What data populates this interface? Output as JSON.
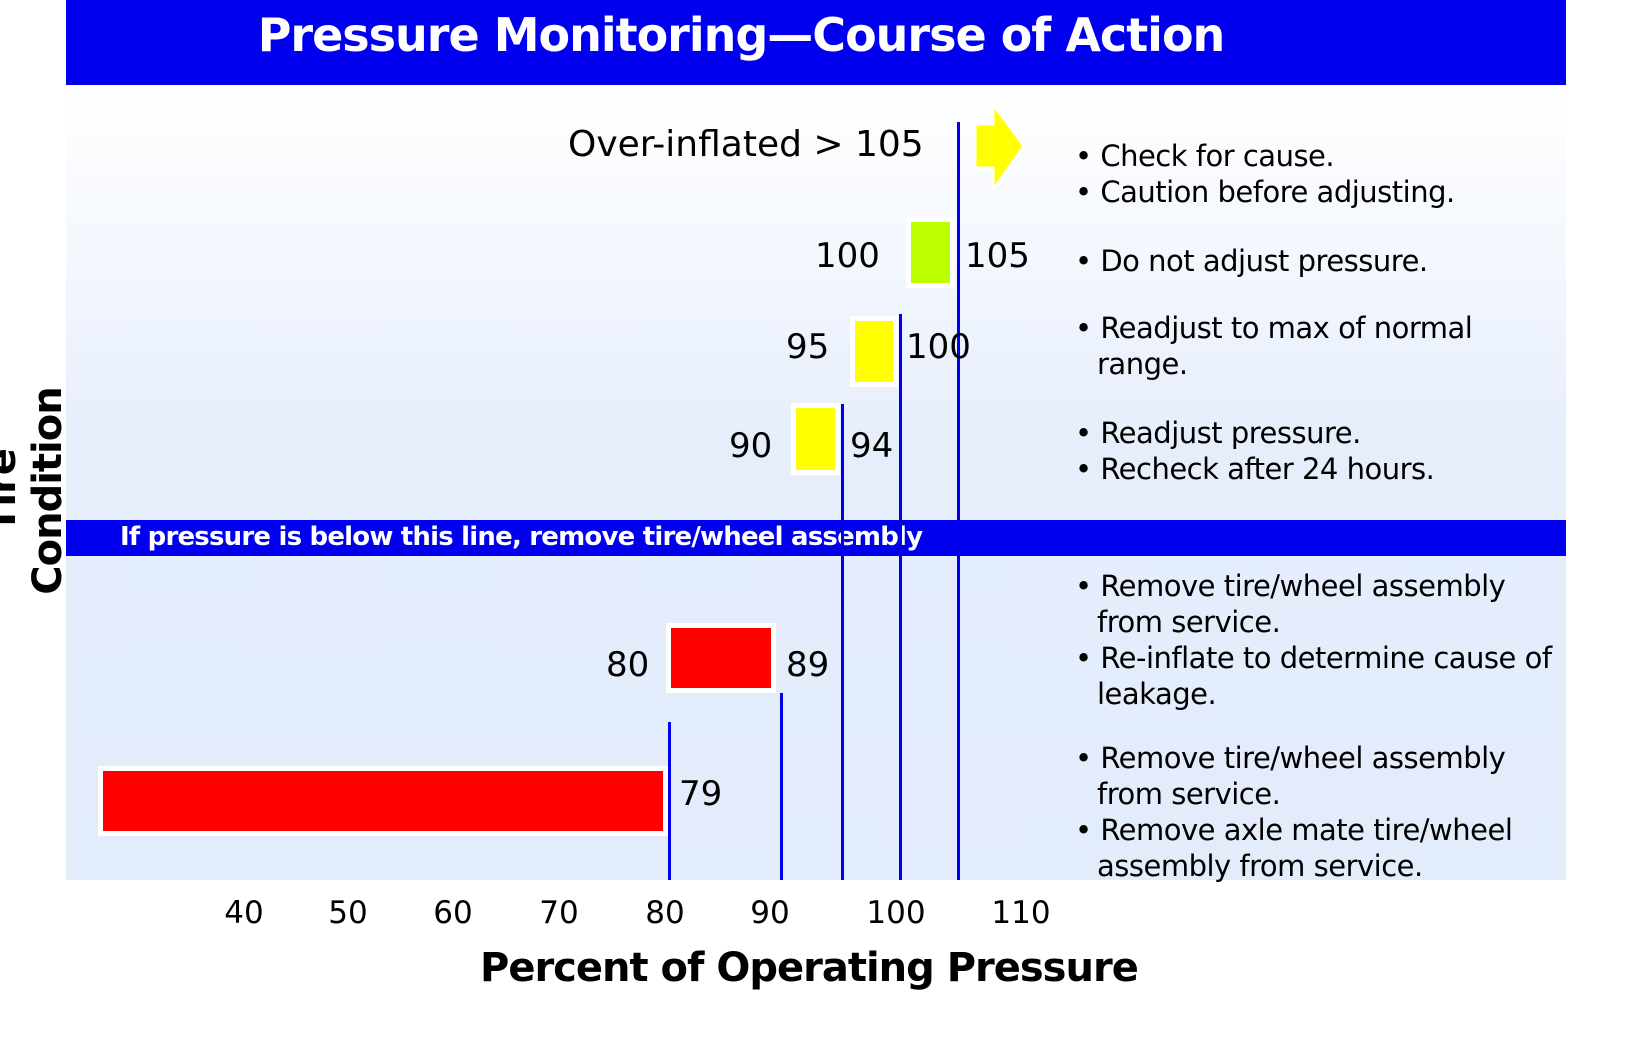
{
  "chart_data": {
    "type": "bar",
    "title": "Pressure Monitoring—Course of Action",
    "xlabel": "Percent of Operating Pressure",
    "ylabel": "Tire Condition",
    "x_ticks": [
      "40",
      "50",
      "60",
      "70",
      "80",
      "90",
      "100",
      "110"
    ],
    "threshold_text": "If pressure is below this line, remove tire/wheel assembly",
    "rows": [
      {
        "label": "Over-inflated > 105",
        "low": "",
        "high": "",
        "range": [
          105,
          null
        ],
        "color": "#ffff00",
        "mark": "arrow",
        "actions": [
          "Check for cause.",
          "Caution before adjusting."
        ]
      },
      {
        "label": "",
        "low": "100",
        "high": "105",
        "range": [
          100,
          105
        ],
        "color": "#bbff00",
        "actions": [
          "Do not adjust pressure."
        ]
      },
      {
        "label": "",
        "low": "95",
        "high": "100",
        "range": [
          95,
          100
        ],
        "color": "#ffff00",
        "actions": [
          "Readjust to max of normal range."
        ]
      },
      {
        "label": "",
        "low": "90",
        "high": "94",
        "range": [
          90,
          94
        ],
        "color": "#ffff00",
        "actions": [
          "Readjust pressure.",
          "Recheck after 24 hours."
        ]
      },
      {
        "label": "",
        "low": "80",
        "high": "89",
        "range": [
          80,
          89
        ],
        "color": "#ff0000",
        "actions": [
          "Remove tire/wheel assembly from service.",
          "Re-inflate to determine cause of leakage."
        ]
      },
      {
        "label": "",
        "low": "",
        "high": "79",
        "range": [
          null,
          79
        ],
        "color": "#ff0000",
        "actions": [
          "Remove tire/wheel assembly from service.",
          "Remove axle mate tire/wheel assembly from service."
        ]
      }
    ],
    "reference_lines": [
      80,
      90,
      95,
      100,
      105
    ],
    "grid": false
  }
}
